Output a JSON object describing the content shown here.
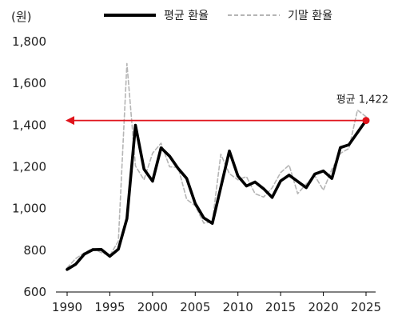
{
  "chart_data": {
    "type": "line",
    "ylabel": "(원)",
    "xlim": [
      1990,
      2025
    ],
    "ylim": [
      600,
      1800
    ],
    "x_ticks": [
      1990,
      1995,
      2000,
      2005,
      2010,
      2015,
      2020,
      2025
    ],
    "y_ticks": [
      600,
      800,
      1000,
      1200,
      1400,
      1600,
      1800
    ],
    "y_tick_labels": [
      "600",
      "800",
      "1,000",
      "1,200",
      "1,400",
      "1,600",
      "1,800"
    ],
    "grid": false,
    "legend_position": "top",
    "series": [
      {
        "name": "평균 환율",
        "color": "#000000",
        "style": "solid",
        "points": [
          [
            1990,
            708
          ],
          [
            1991,
            733
          ],
          [
            1992,
            781
          ],
          [
            1993,
            803
          ],
          [
            1994,
            804
          ],
          [
            1995,
            771
          ],
          [
            1996,
            805
          ],
          [
            1997,
            951
          ],
          [
            1998,
            1399
          ],
          [
            1999,
            1189
          ],
          [
            2000,
            1131
          ],
          [
            2001,
            1291
          ],
          [
            2002,
            1251
          ],
          [
            2003,
            1192
          ],
          [
            2004,
            1144
          ],
          [
            2005,
            1024
          ],
          [
            2006,
            955
          ],
          [
            2007,
            929
          ],
          [
            2008,
            1102
          ],
          [
            2009,
            1276
          ],
          [
            2010,
            1156
          ],
          [
            2011,
            1108
          ],
          [
            2012,
            1127
          ],
          [
            2013,
            1095
          ],
          [
            2014,
            1053
          ],
          [
            2015,
            1132
          ],
          [
            2016,
            1160
          ],
          [
            2017,
            1130
          ],
          [
            2018,
            1100
          ],
          [
            2019,
            1165
          ],
          [
            2020,
            1180
          ],
          [
            2021,
            1144
          ],
          [
            2022,
            1292
          ],
          [
            2023,
            1306
          ],
          [
            2024,
            1364
          ],
          [
            2025,
            1422
          ]
        ]
      },
      {
        "name": "기말 환율",
        "color": "#b5b5b5",
        "style": "dashed",
        "points": [
          [
            1990,
            716
          ],
          [
            1991,
            760
          ],
          [
            1992,
            788
          ],
          [
            1993,
            808
          ],
          [
            1994,
            789
          ],
          [
            1995,
            775
          ],
          [
            1996,
            844
          ],
          [
            1997,
            1695
          ],
          [
            1998,
            1204
          ],
          [
            1999,
            1138
          ],
          [
            2000,
            1265
          ],
          [
            2001,
            1313
          ],
          [
            2002,
            1200
          ],
          [
            2003,
            1197
          ],
          [
            2004,
            1044
          ],
          [
            2005,
            1013
          ],
          [
            2006,
            930
          ],
          [
            2007,
            936
          ],
          [
            2008,
            1260
          ],
          [
            2009,
            1167
          ],
          [
            2010,
            1138
          ],
          [
            2011,
            1153
          ],
          [
            2012,
            1071
          ],
          [
            2013,
            1055
          ],
          [
            2014,
            1099
          ],
          [
            2015,
            1172
          ],
          [
            2016,
            1208
          ],
          [
            2017,
            1071
          ],
          [
            2018,
            1118
          ],
          [
            2019,
            1157
          ],
          [
            2020,
            1088
          ],
          [
            2021,
            1188
          ],
          [
            2022,
            1264
          ],
          [
            2023,
            1288
          ],
          [
            2024,
            1472
          ],
          [
            2025,
            1440
          ]
        ]
      }
    ],
    "reference_line": {
      "label": "평균 1,422",
      "value": 1422,
      "x_start": 1990,
      "x_end": 2025,
      "color": "#e0131b"
    }
  }
}
